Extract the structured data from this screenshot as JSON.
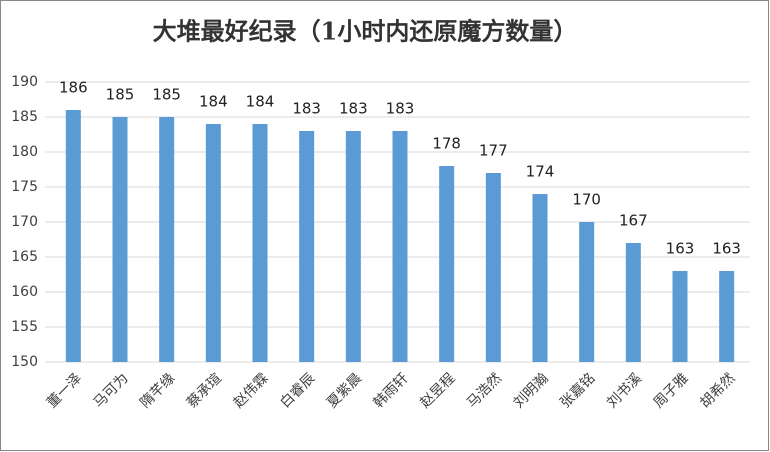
{
  "chart_data": {
    "type": "bar",
    "title": "大堆最好纪录（1小时内还原魔方数量）",
    "categories": [
      "董一泽",
      "马可为",
      "隋芊缘",
      "蔡承瑄",
      "赵伟霖",
      "白睿辰",
      "夏紫晨",
      "韩雨轩",
      "赵昱程",
      "马浩然",
      "刘明瀚",
      "张嘉铭",
      "刘书溪",
      "周子雅",
      "胡希然"
    ],
    "values": [
      186,
      185,
      185,
      184,
      184,
      183,
      183,
      183,
      178,
      177,
      174,
      170,
      167,
      163,
      163
    ],
    "color": "#5b9bd5",
    "ylim": [
      150,
      190
    ],
    "yticks": [
      150,
      155,
      160,
      165,
      170,
      175,
      180,
      185,
      190
    ],
    "grid": true
  }
}
